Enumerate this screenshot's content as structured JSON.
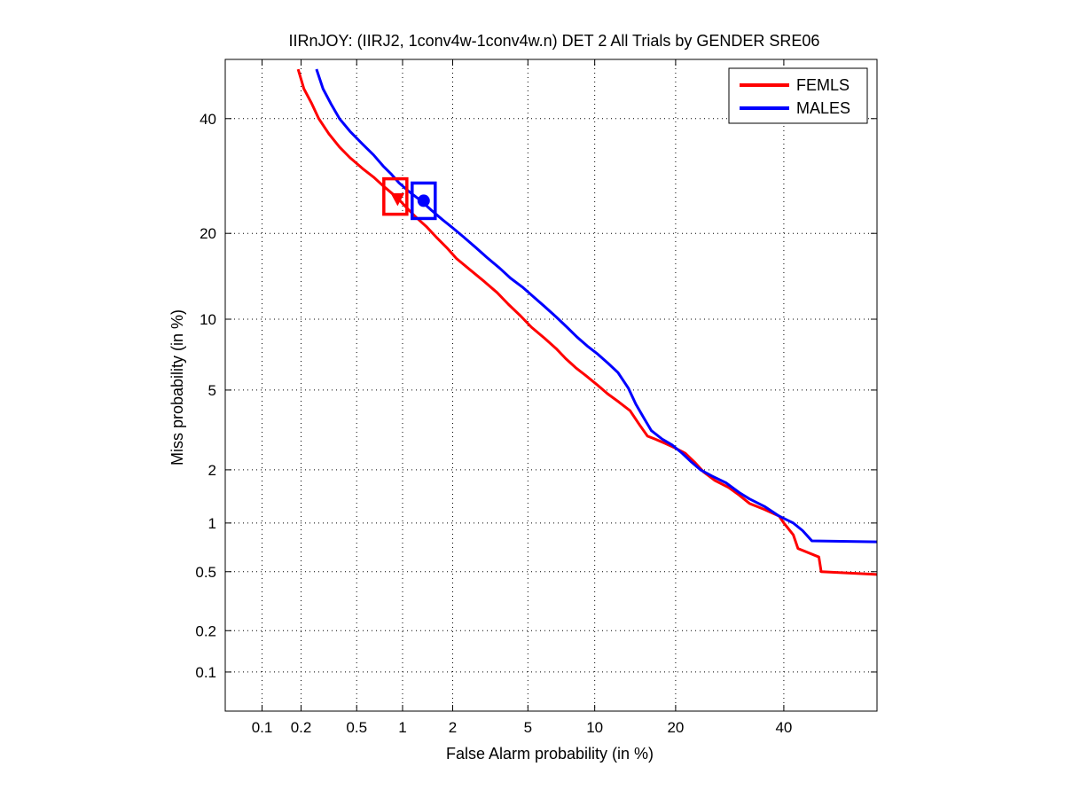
{
  "chart_data": {
    "type": "line",
    "title": "IIRnJOY: (IIRJ2, 1conv4w-1conv4w.n) DET 2 All Trials by GENDER SRE06",
    "xlabel": "False Alarm probability (in %)",
    "ylabel": "Miss probability (in %)",
    "x_scale": "probit",
    "y_scale": "probit",
    "xlim": [
      0.05,
      60
    ],
    "ylim": [
      0.05,
      52
    ],
    "x_ticks": [
      0.1,
      0.2,
      0.5,
      1,
      2,
      5,
      10,
      20,
      40
    ],
    "x_tick_labels": [
      "0.1",
      "0.2",
      "0.5",
      "1",
      "2",
      "5",
      "10",
      "20",
      "40"
    ],
    "y_ticks": [
      0.1,
      0.2,
      0.5,
      1,
      2,
      5,
      10,
      20,
      40
    ],
    "y_tick_labels": [
      "0.1",
      "0.2",
      "0.5",
      "1",
      "2",
      "5",
      "10",
      "20",
      "40"
    ],
    "grid": true,
    "legend_position": "top-right",
    "series": [
      {
        "name": "FEMLS",
        "color": "#ff0000",
        "x": [
          0.19,
          0.21,
          0.24,
          0.27,
          0.32,
          0.38,
          0.45,
          0.55,
          0.65,
          0.75,
          0.85,
          0.95,
          1.05,
          1.2,
          1.4,
          1.6,
          1.85,
          2.1,
          2.5,
          3.0,
          3.5,
          4.0,
          4.6,
          5.2,
          6.0,
          6.8,
          7.5,
          8.3,
          9.2,
          10.2,
          11.3,
          12.5,
          13.8,
          15.0,
          16.0,
          17.0,
          18.5,
          20.0,
          21.5,
          23.0,
          24.5,
          26.5,
          29.0,
          31.0,
          33.0,
          36.0,
          39.0,
          40.0,
          42.0,
          43.0,
          47.5,
          48.0,
          60.0
        ],
        "y": [
          50,
          46,
          43,
          40,
          37,
          34.5,
          32.5,
          30.5,
          29,
          27.5,
          26.3,
          25.2,
          24,
          22.5,
          21,
          19.5,
          18,
          16.6,
          15.2,
          13.8,
          12.6,
          11.4,
          10.3,
          9.3,
          8.4,
          7.6,
          6.9,
          6.3,
          5.8,
          5.3,
          4.8,
          4.4,
          4.0,
          3.4,
          3.0,
          2.9,
          2.75,
          2.6,
          2.45,
          2.2,
          1.95,
          1.75,
          1.6,
          1.45,
          1.3,
          1.2,
          1.1,
          1.0,
          0.85,
          0.7,
          0.62,
          0.5,
          0.48
        ]
      },
      {
        "name": "MALES",
        "color": "#0000ff",
        "x": [
          0.26,
          0.29,
          0.33,
          0.38,
          0.45,
          0.55,
          0.65,
          0.75,
          0.85,
          0.95,
          1.1,
          1.3,
          1.5,
          1.75,
          2.0,
          2.3,
          2.7,
          3.1,
          3.6,
          4.1,
          4.7,
          5.3,
          6.0,
          6.8,
          7.6,
          8.4,
          9.3,
          10.3,
          11.3,
          12.4,
          13.6,
          14.5,
          15.5,
          16.5,
          18.0,
          19.5,
          21.0,
          22.5,
          24.0,
          26.0,
          28.5,
          31.0,
          33.0,
          36.0,
          39.0,
          42.0,
          44.0,
          46.0,
          60.0
        ],
        "y": [
          50,
          46,
          43,
          40,
          37.5,
          35,
          33,
          31,
          29.5,
          28,
          26.5,
          25,
          23.5,
          22,
          20.8,
          19.5,
          18,
          16.7,
          15.4,
          14.2,
          13.2,
          12.2,
          11.2,
          10.2,
          9.3,
          8.5,
          7.8,
          7.2,
          6.6,
          6.0,
          5.1,
          4.3,
          3.7,
          3.2,
          2.9,
          2.7,
          2.45,
          2.2,
          2.0,
          1.85,
          1.7,
          1.5,
          1.38,
          1.25,
          1.1,
          1.0,
          0.9,
          0.78,
          0.77
        ]
      }
    ],
    "markers": [
      {
        "series": "FEMLS",
        "type": "act-dcf-box",
        "x": 0.9,
        "y": 25.7,
        "color": "#ff0000"
      },
      {
        "series": "FEMLS",
        "type": "min-dcf-triangle",
        "x": 0.93,
        "y": 25.3,
        "color": "#ff0000"
      },
      {
        "series": "MALES",
        "type": "act-dcf-box",
        "x": 1.35,
        "y": 25.0,
        "color": "#0000ff"
      },
      {
        "series": "MALES",
        "type": "min-dcf-circle",
        "x": 1.35,
        "y": 25.0,
        "color": "#0000ff"
      }
    ]
  }
}
